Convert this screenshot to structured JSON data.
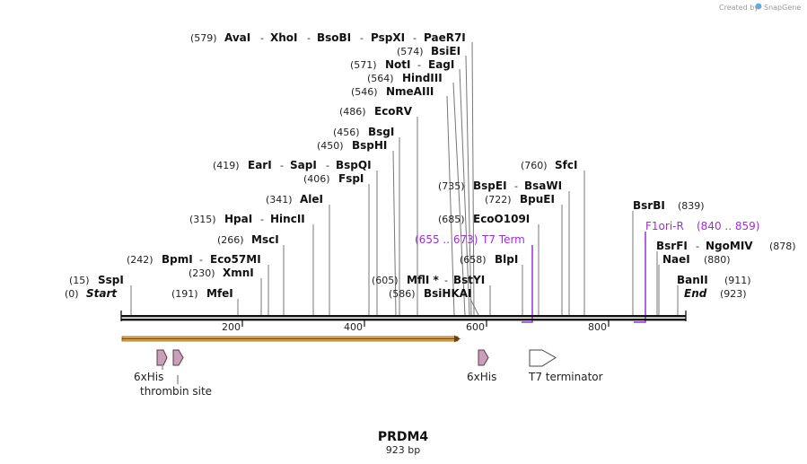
{
  "brand": {
    "prefix": "Created by",
    "name": "SnapGene"
  },
  "plasmid": {
    "name": "PRDM4",
    "length_label": "923 bp"
  },
  "backbone": {
    "start_label": "Start",
    "end_label": "End",
    "start_pos": "(0)",
    "end_pos": "(923)"
  },
  "ruler": {
    "ticks": [
      "200",
      "400",
      "600",
      "800"
    ]
  },
  "sites": [
    {
      "pos": "(15)",
      "names": [
        "SspI"
      ]
    },
    {
      "pos": "(191)",
      "names": [
        "MfeI"
      ]
    },
    {
      "pos": "(230)",
      "names": [
        "XmnI"
      ]
    },
    {
      "pos": "(242)",
      "names": [
        "BpmI",
        "Eco57MI"
      ]
    },
    {
      "pos": "(266)",
      "names": [
        "MscI"
      ]
    },
    {
      "pos": "(315)",
      "names": [
        "HpaI",
        "HincII"
      ]
    },
    {
      "pos": "(341)",
      "names": [
        "AleI"
      ]
    },
    {
      "pos": "(406)",
      "names": [
        "FspI"
      ]
    },
    {
      "pos": "(419)",
      "names": [
        "EarI",
        "SapI",
        "BspQI"
      ]
    },
    {
      "pos": "(450)",
      "names": [
        "BspHI"
      ]
    },
    {
      "pos": "(456)",
      "names": [
        "BsgI"
      ]
    },
    {
      "pos": "(486)",
      "names": [
        "EcoRV"
      ]
    },
    {
      "pos": "(546)",
      "names": [
        "NmeAIII"
      ]
    },
    {
      "pos": "(564)",
      "names": [
        "HindIII"
      ]
    },
    {
      "pos": "(571)",
      "names": [
        "NotI",
        "EagI"
      ]
    },
    {
      "pos": "(574)",
      "names": [
        "BsiEI"
      ]
    },
    {
      "pos": "(579)",
      "names": [
        "AvaI",
        "XhoI",
        "BsoBI",
        "PspXI",
        "PaeR7I"
      ]
    },
    {
      "pos": "(586)",
      "names": [
        "BsiHKAI"
      ]
    },
    {
      "pos": "(605)",
      "names": [
        "MflI *",
        "BstYI"
      ]
    },
    {
      "pos": "(658)",
      "names": [
        "BlpI"
      ]
    },
    {
      "pos": "(685)",
      "names": [
        "EcoO109I"
      ]
    },
    {
      "pos": "(722)",
      "names": [
        "BpuEI"
      ]
    },
    {
      "pos": "(735)",
      "names": [
        "BspEI",
        "BsaWI"
      ]
    },
    {
      "pos": "(760)",
      "names": [
        "SfcI"
      ]
    },
    {
      "pos": "(839)",
      "names": [
        "BsrBI"
      ]
    },
    {
      "pos": "(878)",
      "names": [
        "BsrFI",
        "NgoMIV"
      ]
    },
    {
      "pos": "(880)",
      "names": [
        "NaeI"
      ]
    },
    {
      "pos": "(911)",
      "names": [
        "BanII"
      ]
    }
  ],
  "primers": [
    {
      "name": "T7 Term",
      "range": "(655 .. 673)"
    },
    {
      "name": "F1ori-R",
      "range": "(840 .. 859)"
    }
  ],
  "features": [
    {
      "label": "6xHis"
    },
    {
      "label": "thrombin site"
    },
    {
      "label": "6xHis"
    },
    {
      "label": "T7 terminator"
    }
  ],
  "colors": {
    "primer": "#9b30d9",
    "orf_fill": "#f0b64a",
    "tag_fill": "#c9a0b8"
  }
}
